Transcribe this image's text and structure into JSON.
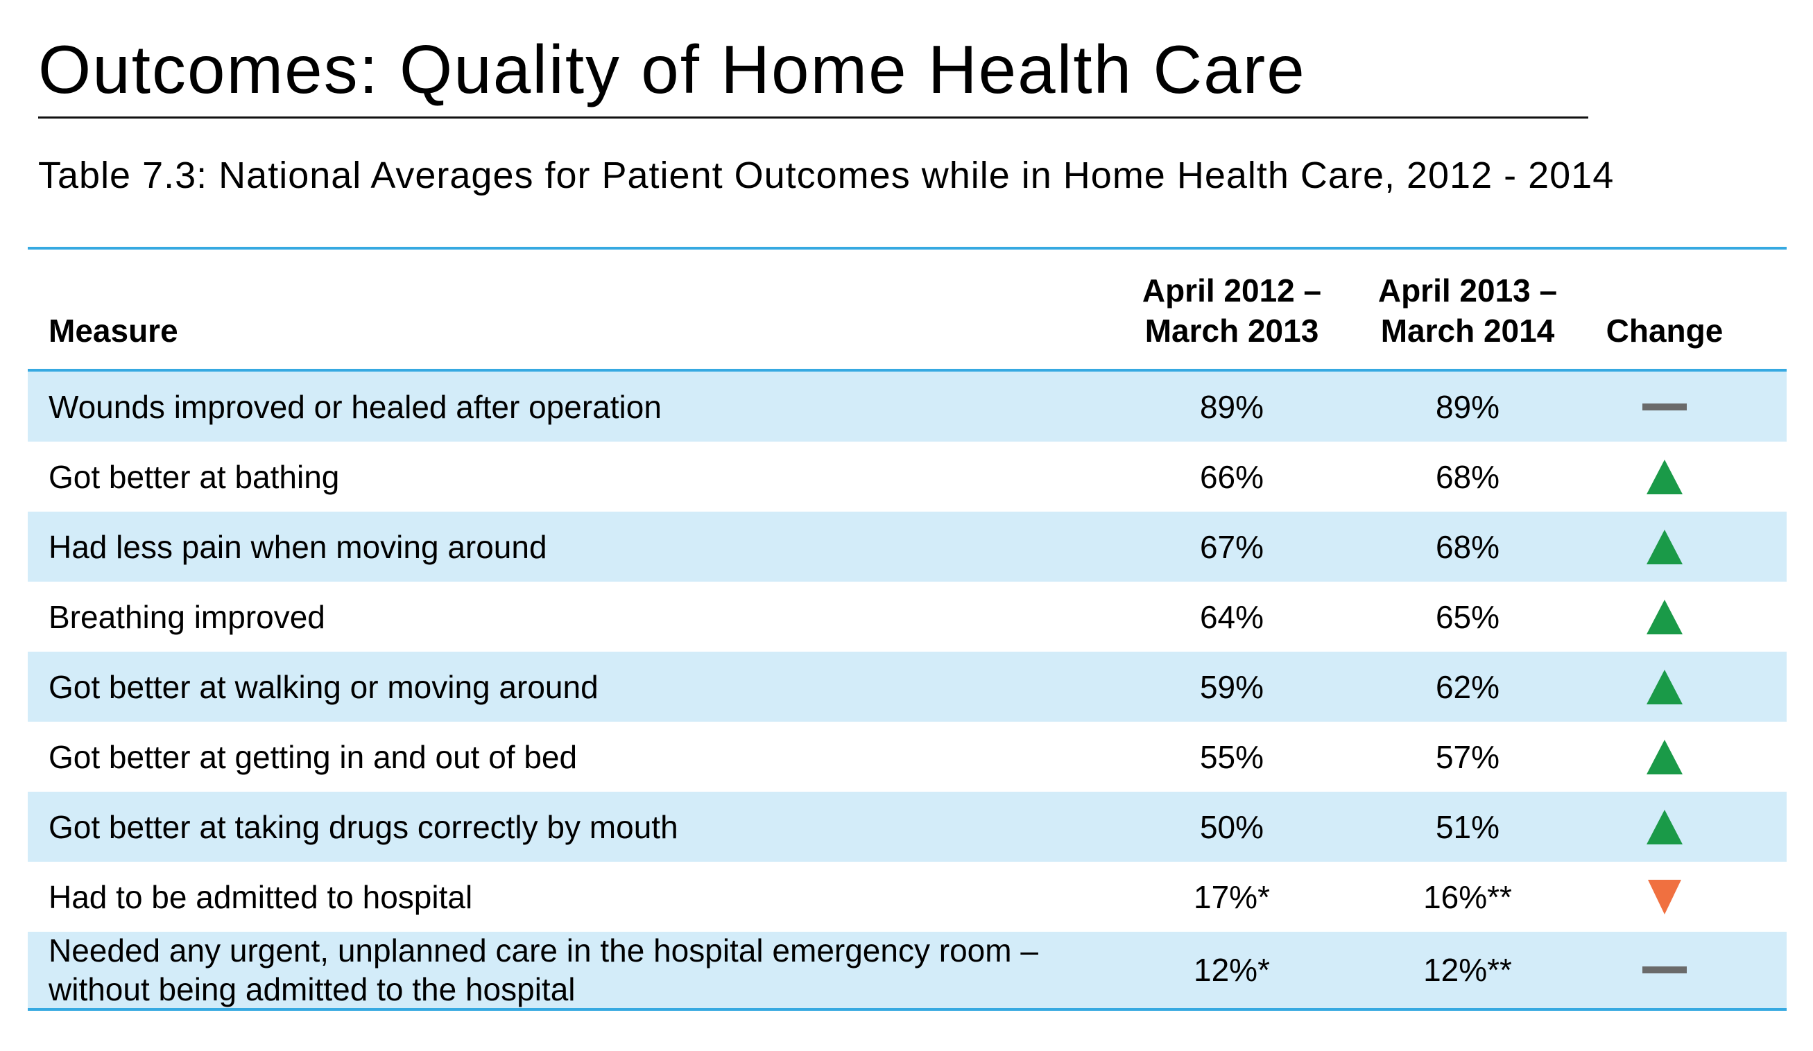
{
  "page": {
    "title": "Outcomes: Quality of Home Health Care",
    "subtitle": "Table 7.3: National Averages for Patient Outcomes while in Home Health Care, 2012 - 2014"
  },
  "table": {
    "headers": {
      "measure": "Measure",
      "period1_line1": "April 2012 –",
      "period1_line2": "March 2013",
      "period2_line1": "April 2013 –",
      "period2_line2": "March 2014",
      "change": "Change"
    },
    "rows": [
      {
        "measure": "Wounds improved or healed after operation",
        "v1": "89%",
        "v2": "89%",
        "change": "dash-icon"
      },
      {
        "measure": "Got better at bathing",
        "v1": "66%",
        "v2": "68%",
        "change": "up-arrow-icon"
      },
      {
        "measure": "Had less pain when moving around",
        "v1": "67%",
        "v2": "68%",
        "change": "up-arrow-icon"
      },
      {
        "measure": "Breathing improved",
        "v1": "64%",
        "v2": "65%",
        "change": "up-arrow-icon"
      },
      {
        "measure": "Got better at walking or moving around",
        "v1": "59%",
        "v2": "62%",
        "change": "up-arrow-icon"
      },
      {
        "measure": "Got better at getting in and out of bed",
        "v1": "55%",
        "v2": "57%",
        "change": "up-arrow-icon"
      },
      {
        "measure": "Got better at taking drugs correctly by mouth",
        "v1": "50%",
        "v2": "51%",
        "change": "up-arrow-icon"
      },
      {
        "measure": "Had to be admitted to hospital",
        "v1": "17%*",
        "v2": "16%**",
        "change": "down-arrow-icon"
      },
      {
        "measure_line1": "Needed any urgent, unplanned care in the hospital emergency room –",
        "measure_line2": "without being admitted to the hospital",
        "v1": "12%*",
        "v2": "12%**",
        "change": "dash-icon"
      }
    ]
  },
  "colors": {
    "rule": "#36a9e1",
    "row_shade": "#d3ecf9",
    "up": "#1a9a48",
    "down": "#f07040",
    "neutral": "#6a6a6a"
  }
}
